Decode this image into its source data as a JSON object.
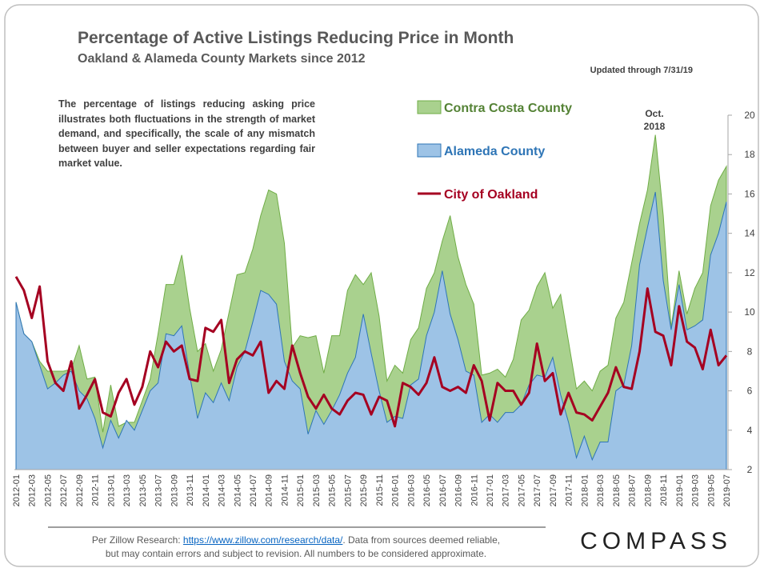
{
  "chart_data": {
    "type": "area",
    "title": "Percentage of Active Listings Reducing Price in Month",
    "subtitle": "Oakland  & Alameda County Markets since 2012",
    "updated": "Updated through 7/31/19",
    "note": "The percentage of listings reducing asking price illustrates both fluctuations in the strength of market demand, and specifically, the scale of any mismatch between buyer and seller expectations regarding fair market value.",
    "annotation": [
      "Oct.",
      "2018"
    ],
    "categories": [
      "2012-01",
      null,
      "2012-03",
      null,
      "2012-05",
      null,
      "2012-07",
      null,
      "2012-09",
      null,
      "2012-11",
      null,
      "2013-01",
      null,
      "2013-03",
      null,
      "2013-05",
      null,
      "2013-07",
      null,
      "2013-09",
      null,
      "2013-11",
      null,
      "2014-01",
      null,
      "2014-03",
      null,
      "2014-05",
      null,
      "2014-07",
      null,
      "2014-09",
      null,
      "2014-11",
      null,
      "2015-01",
      null,
      "2015-03",
      null,
      "2015-05",
      null,
      "2015-07",
      null,
      "2015-09",
      null,
      "2015-11",
      null,
      "2016-01",
      null,
      "2016-03",
      null,
      "2016-05",
      null,
      "2016-07",
      null,
      "2016-09",
      null,
      "2016-11",
      null,
      "2017-01",
      null,
      "2017-03",
      null,
      "2017-05",
      null,
      "2017-07",
      null,
      "2017-09",
      null,
      "2017-11",
      null,
      "2018-01",
      null,
      "2018-03",
      null,
      "2018-05",
      null,
      "2018-07",
      null,
      "2018-09",
      null,
      "2018-11",
      null,
      "2019-01",
      null,
      "2019-03",
      null,
      "2019-05",
      null,
      "2019-07"
    ],
    "series": [
      {
        "name": "Contra Costa County",
        "type": "area",
        "color": "#a9d18e",
        "values": [
          10.5,
          8.9,
          8.5,
          7.5,
          7.0,
          7.0,
          7.0,
          7.1,
          8.3,
          6.6,
          6.7,
          3.9,
          6.3,
          4.2,
          4.4,
          4.4,
          5.5,
          6.6,
          8.9,
          11.4,
          11.4,
          12.9,
          10.2,
          8.0,
          8.4,
          7.0,
          8.1,
          10.0,
          11.9,
          12.0,
          13.2,
          14.9,
          16.2,
          16.0,
          13.5,
          8.2,
          8.8,
          8.7,
          8.8,
          6.9,
          8.8,
          8.8,
          11.1,
          11.9,
          11.4,
          12.0,
          9.8,
          6.5,
          7.3,
          6.9,
          8.6,
          9.2,
          11.2,
          12.0,
          13.6,
          14.9,
          12.8,
          11.4,
          10.4,
          6.8,
          6.9,
          7.1,
          6.7,
          7.6,
          9.6,
          10.1,
          11.3,
          12.0,
          10.2,
          10.9,
          8.5,
          6.1,
          6.5,
          6.0,
          7.0,
          7.3,
          9.7,
          10.5,
          12.5,
          14.5,
          16.2,
          19.0,
          14.9,
          9.2,
          12.1,
          9.9,
          11.2,
          12.0,
          15.4,
          16.7,
          17.4
        ]
      },
      {
        "name": "Alameda County",
        "type": "area",
        "color": "#9dc3e6",
        "values": [
          10.5,
          8.9,
          8.5,
          7.3,
          6.1,
          6.4,
          6.8,
          7.0,
          6.0,
          5.6,
          4.6,
          3.1,
          4.5,
          3.6,
          4.5,
          4.0,
          5.0,
          6.0,
          6.4,
          8.9,
          8.8,
          9.3,
          6.8,
          4.6,
          5.9,
          5.4,
          6.4,
          5.5,
          7.2,
          8.0,
          9.5,
          11.1,
          10.9,
          10.4,
          7.5,
          6.5,
          6.1,
          3.8,
          5.0,
          4.3,
          5.0,
          5.8,
          6.9,
          7.7,
          9.9,
          7.9,
          6.0,
          4.4,
          4.7,
          4.6,
          6.3,
          6.6,
          8.8,
          10.0,
          12.1,
          9.9,
          8.6,
          7.0,
          6.8,
          4.4,
          4.8,
          4.4,
          4.9,
          4.9,
          5.3,
          6.3,
          6.8,
          6.7,
          7.7,
          5.8,
          4.4,
          2.6,
          3.7,
          2.5,
          3.4,
          3.4,
          6.0,
          6.3,
          8.3,
          12.4,
          14.3,
          16.1,
          11.6,
          9.1,
          11.4,
          9.1,
          9.3,
          9.6,
          12.9,
          14.0,
          15.6
        ]
      },
      {
        "name": "City of Oakland",
        "type": "line",
        "color": "#a50021",
        "values": [
          11.8,
          11.1,
          9.7,
          11.3,
          7.5,
          6.4,
          6.0,
          7.5,
          5.1,
          5.8,
          6.6,
          4.9,
          4.7,
          5.9,
          6.6,
          5.3,
          6.2,
          8.0,
          7.2,
          8.5,
          8.0,
          8.3,
          6.6,
          6.5,
          9.2,
          9.0,
          9.6,
          6.4,
          7.6,
          8.0,
          7.8,
          8.5,
          5.9,
          6.5,
          6.1,
          8.3,
          6.9,
          5.7,
          5.1,
          5.8,
          5.1,
          4.8,
          5.5,
          5.9,
          5.8,
          4.8,
          5.7,
          5.5,
          4.2,
          6.4,
          6.2,
          5.8,
          6.4,
          7.7,
          6.2,
          6.0,
          6.2,
          5.9,
          7.3,
          6.5,
          4.5,
          6.4,
          6.0,
          6.0,
          5.3,
          5.9,
          8.4,
          6.5,
          6.9,
          4.8,
          5.9,
          4.9,
          4.8,
          4.5,
          5.2,
          5.9,
          7.2,
          6.2,
          6.1,
          8.0,
          11.2,
          9.0,
          8.8,
          7.3,
          10.3,
          8.5,
          8.2,
          7.1,
          9.1,
          7.3,
          7.8
        ]
      }
    ],
    "ylim": [
      2,
      20
    ],
    "yticks": [
      2,
      4,
      6,
      8,
      10,
      12,
      14,
      16,
      18,
      20
    ],
    "footer": {
      "prefix": "Per Zillow Research: ",
      "link": "https://www.zillow.com/research/data/",
      "suffix": ". Data from sources deemed reliable,",
      "line2": "but may contain errors and subject to revision.  All numbers to be considered approximate."
    },
    "brand": "COMPASS"
  }
}
